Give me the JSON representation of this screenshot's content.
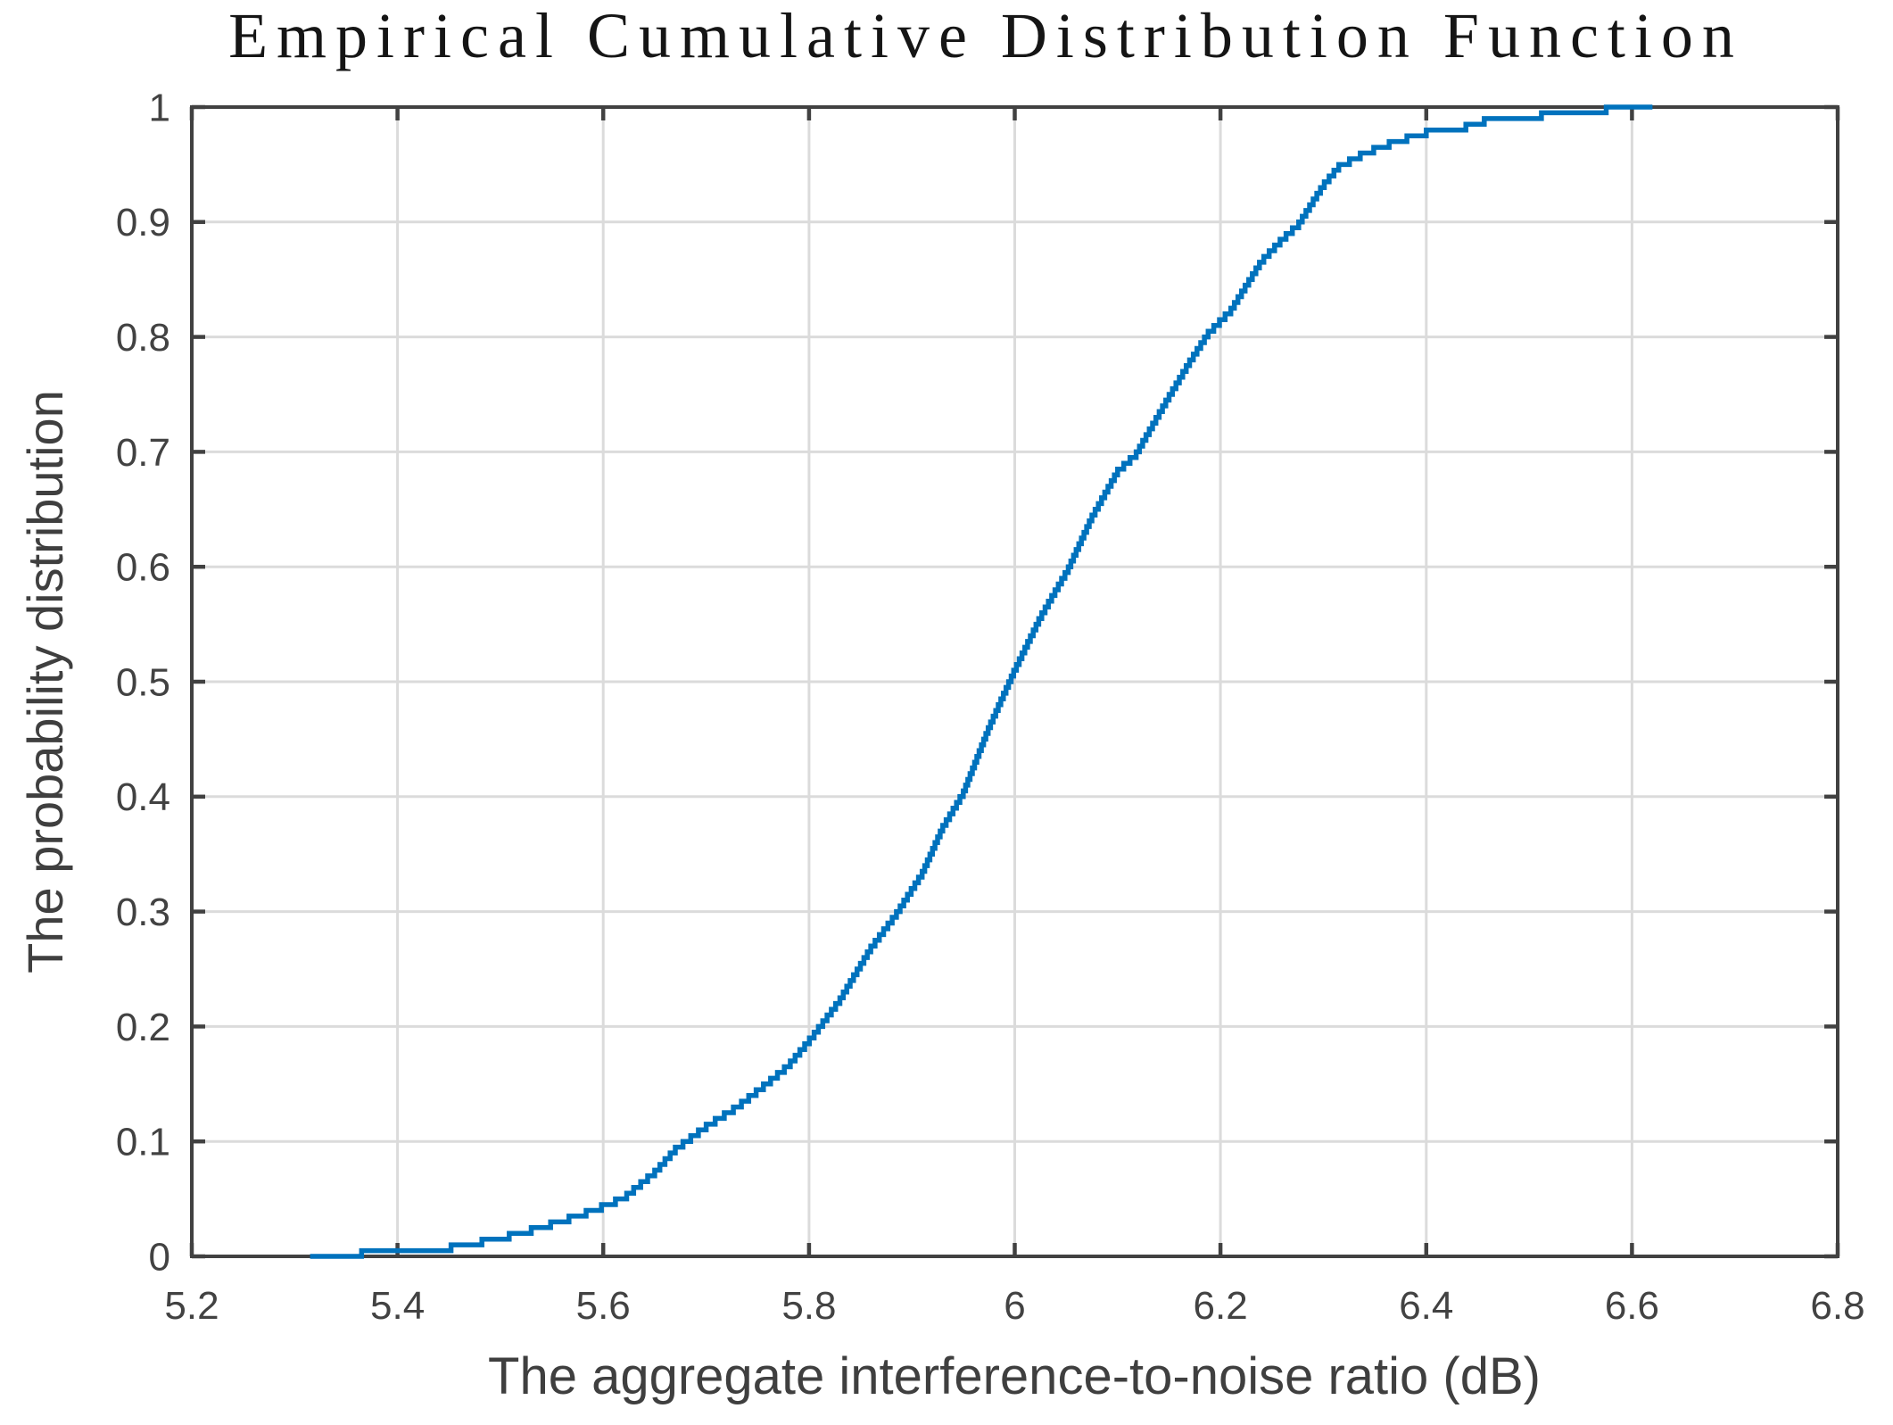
{
  "chart_data": {
    "type": "line",
    "subtype": "ecdf-stairs",
    "title": "Empirical Cumulative Distribution Function",
    "xlabel": "The aggregate interference-to-noise ratio (dB)",
    "ylabel": "The probability distribution",
    "xlim": [
      5.2,
      6.8
    ],
    "ylim": [
      0,
      1
    ],
    "xticks": [
      5.2,
      5.4,
      5.6,
      5.8,
      6.0,
      6.2,
      6.4,
      6.6,
      6.8
    ],
    "xtick_labels": [
      "5.2",
      "5.4",
      "5.6",
      "5.8",
      "6",
      "6.2",
      "6.4",
      "6.6",
      "6.8"
    ],
    "yticks": [
      0,
      0.1,
      0.2,
      0.3,
      0.4,
      0.5,
      0.6,
      0.7,
      0.8,
      0.9,
      1
    ],
    "ytick_labels": [
      "0",
      "0.1",
      "0.2",
      "0.3",
      "0.4",
      "0.5",
      "0.6",
      "0.7",
      "0.8",
      "0.9",
      "1"
    ],
    "grid": true,
    "legend": "none",
    "line_color": "#0072BD",
    "axis_color": "#414141",
    "grid_color": "#DBDBDB",
    "tick_label_color": "#424242",
    "axis_label_color": "#3F3F3F",
    "title_color": "#151515",
    "n_steps": 200,
    "x_start": 5.315,
    "x_end": 6.62,
    "cdf_anchors": [
      [
        5.315,
        0.0
      ],
      [
        5.33,
        0.004
      ],
      [
        5.4,
        0.006
      ],
      [
        5.44,
        0.008
      ],
      [
        5.47,
        0.013
      ],
      [
        5.5,
        0.018
      ],
      [
        5.53,
        0.025
      ],
      [
        5.56,
        0.033
      ],
      [
        5.59,
        0.042
      ],
      [
        5.62,
        0.053
      ],
      [
        5.65,
        0.075
      ],
      [
        5.67,
        0.095
      ],
      [
        5.7,
        0.115
      ],
      [
        5.73,
        0.132
      ],
      [
        5.76,
        0.153
      ],
      [
        5.78,
        0.168
      ],
      [
        5.805,
        0.195
      ],
      [
        5.83,
        0.225
      ],
      [
        5.86,
        0.27
      ],
      [
        5.885,
        0.3
      ],
      [
        5.91,
        0.335
      ],
      [
        5.93,
        0.375
      ],
      [
        5.95,
        0.405
      ],
      [
        5.975,
        0.462
      ],
      [
        6.0,
        0.512
      ],
      [
        6.025,
        0.558
      ],
      [
        6.052,
        0.6
      ],
      [
        6.075,
        0.645
      ],
      [
        6.1,
        0.685
      ],
      [
        6.118,
        0.7
      ],
      [
        6.15,
        0.75
      ],
      [
        6.17,
        0.78
      ],
      [
        6.188,
        0.805
      ],
      [
        6.21,
        0.825
      ],
      [
        6.24,
        0.868
      ],
      [
        6.26,
        0.887
      ],
      [
        6.276,
        0.9
      ],
      [
        6.3,
        0.934
      ],
      [
        6.315,
        0.95
      ],
      [
        6.34,
        0.962
      ],
      [
        6.37,
        0.972
      ],
      [
        6.4,
        0.98
      ],
      [
        6.435,
        0.984
      ],
      [
        6.46,
        0.991
      ],
      [
        6.5,
        0.994
      ],
      [
        6.53,
        0.9965
      ],
      [
        6.555,
        0.9985
      ],
      [
        6.575,
        1.0
      ]
    ]
  }
}
